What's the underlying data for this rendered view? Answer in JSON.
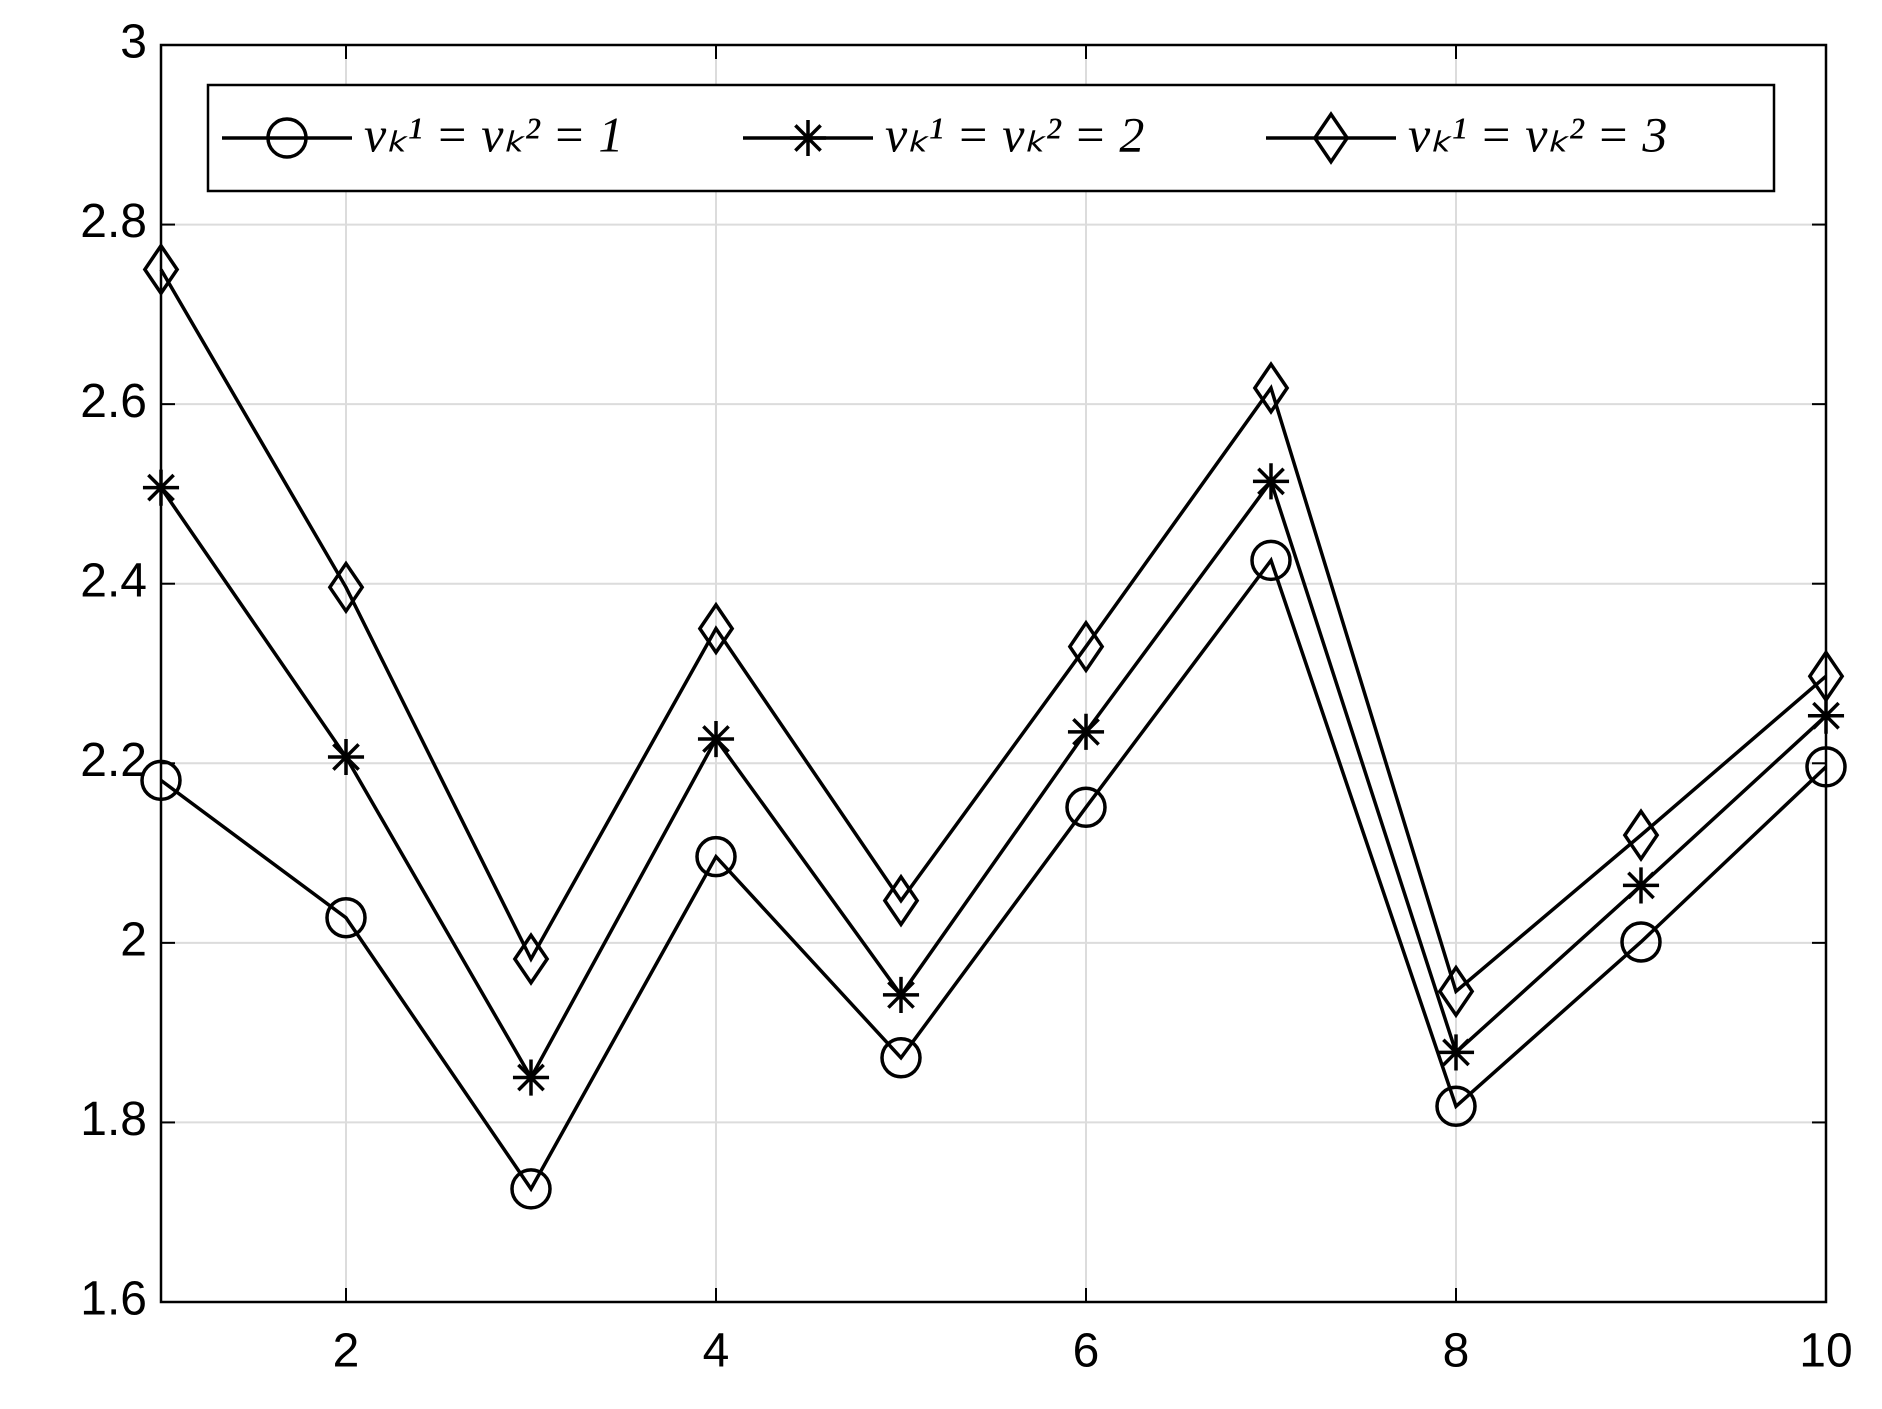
{
  "chart_data": {
    "type": "line",
    "x": [
      1,
      2,
      3,
      4,
      5,
      6,
      7,
      8,
      9,
      10
    ],
    "series": [
      {
        "name": "νₖ¹ = νₖ² = 1",
        "color": "#000000",
        "marker": "circle",
        "values": [
          2.181,
          2.028,
          1.726,
          2.096,
          1.872,
          2.151,
          2.426,
          1.818,
          2.001,
          2.196
        ]
      },
      {
        "name": "νₖ¹ = νₖ² = 2",
        "color": "#000000",
        "marker": "asterisk",
        "values": [
          2.507,
          2.207,
          1.85,
          2.227,
          1.942,
          2.235,
          2.514,
          1.878,
          2.064,
          2.253
        ]
      },
      {
        "name": "νₖ¹ = νₖ² = 3",
        "color": "#000000",
        "marker": "diamond",
        "values": [
          2.75,
          2.396,
          1.982,
          2.35,
          2.047,
          2.33,
          2.618,
          1.946,
          2.12,
          2.297
        ]
      }
    ],
    "xlim": [
      1,
      10
    ],
    "xticks": [
      2,
      4,
      6,
      8,
      10
    ],
    "ylim": [
      1.6,
      3
    ],
    "yticks": [
      1.6,
      1.8,
      2,
      2.2,
      2.4,
      2.6,
      2.8,
      3
    ],
    "grid": true,
    "legend": "top"
  }
}
